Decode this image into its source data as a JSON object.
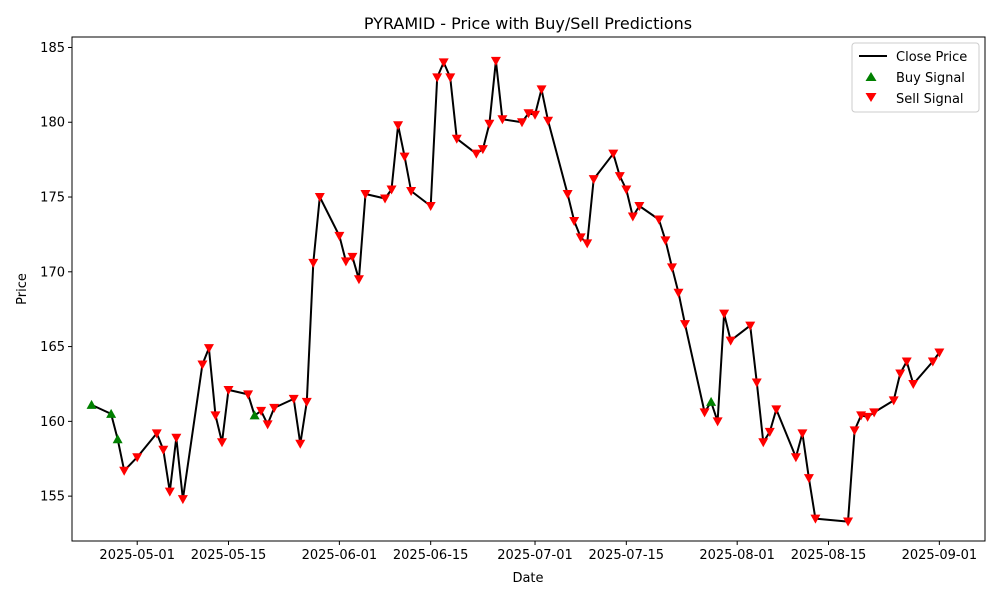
{
  "chart_data": {
    "type": "line",
    "title": "PYRAMID - Price with Buy/Sell Predictions",
    "xlabel": "Date",
    "ylabel": "Price",
    "xlim": [
      "2025-04-21",
      "2025-09-08"
    ],
    "ylim": [
      152.0,
      185.7
    ],
    "x_ticks": [
      "2025-05-01",
      "2025-05-15",
      "2025-06-01",
      "2025-06-15",
      "2025-07-01",
      "2025-07-15",
      "2025-08-01",
      "2025-08-15",
      "2025-09-01"
    ],
    "y_ticks": [
      155,
      160,
      165,
      170,
      175,
      180,
      185
    ],
    "legend": {
      "position": "top-right",
      "entries": [
        "Close Price",
        "Buy Signal",
        "Sell Signal"
      ]
    },
    "colors": {
      "line": "#000000",
      "buy": "#008000",
      "sell": "#ff0000"
    },
    "series": [
      {
        "name": "Close Price",
        "x": [
          "2025-04-24",
          "2025-04-27",
          "2025-04-28",
          "2025-04-29",
          "2025-05-01",
          "2025-05-04",
          "2025-05-05",
          "2025-05-06",
          "2025-05-07",
          "2025-05-08",
          "2025-05-11",
          "2025-05-12",
          "2025-05-13",
          "2025-05-14",
          "2025-05-15",
          "2025-05-18",
          "2025-05-19",
          "2025-05-20",
          "2025-05-21",
          "2025-05-22",
          "2025-05-25",
          "2025-05-26",
          "2025-05-27",
          "2025-05-28",
          "2025-05-29",
          "2025-06-01",
          "2025-06-02",
          "2025-06-03",
          "2025-06-04",
          "2025-06-05",
          "2025-06-08",
          "2025-06-09",
          "2025-06-10",
          "2025-06-11",
          "2025-06-12",
          "2025-06-15",
          "2025-06-16",
          "2025-06-17",
          "2025-06-18",
          "2025-06-19",
          "2025-06-22",
          "2025-06-23",
          "2025-06-24",
          "2025-06-25",
          "2025-06-26",
          "2025-06-29",
          "2025-06-30",
          "2025-07-01",
          "2025-07-02",
          "2025-07-03",
          "2025-07-06",
          "2025-07-07",
          "2025-07-08",
          "2025-07-09",
          "2025-07-10",
          "2025-07-13",
          "2025-07-14",
          "2025-07-15",
          "2025-07-16",
          "2025-07-17",
          "2025-07-20",
          "2025-07-21",
          "2025-07-22",
          "2025-07-23",
          "2025-07-24",
          "2025-07-27",
          "2025-07-28",
          "2025-07-29",
          "2025-07-30",
          "2025-07-31",
          "2025-08-03",
          "2025-08-04",
          "2025-08-05",
          "2025-08-06",
          "2025-08-07",
          "2025-08-10",
          "2025-08-11",
          "2025-08-12",
          "2025-08-13",
          "2025-08-18",
          "2025-08-19",
          "2025-08-20",
          "2025-08-21",
          "2025-08-22",
          "2025-08-25",
          "2025-08-26",
          "2025-08-27",
          "2025-08-28",
          "2025-08-31",
          "2025-09-01"
        ],
        "y": [
          161.1,
          160.5,
          158.8,
          156.7,
          157.6,
          159.2,
          158.1,
          155.3,
          158.9,
          154.8,
          163.8,
          164.9,
          160.4,
          158.6,
          162.1,
          161.8,
          160.4,
          160.7,
          159.8,
          160.9,
          161.5,
          158.5,
          161.3,
          170.6,
          175.0,
          172.4,
          170.7,
          171.0,
          169.5,
          175.2,
          174.9,
          175.5,
          179.8,
          177.7,
          175.4,
          174.4,
          183.0,
          184.0,
          183.0,
          178.9,
          177.9,
          178.2,
          179.9,
          184.1,
          180.2,
          180.0,
          180.6,
          180.5,
          182.2,
          180.1,
          175.2,
          173.4,
          172.3,
          171.9,
          176.2,
          177.9,
          176.4,
          175.5,
          173.7,
          174.4,
          173.5,
          172.1,
          170.3,
          168.6,
          166.5,
          160.6,
          161.3,
          160.0,
          167.2,
          165.4,
          166.4,
          162.6,
          158.6,
          159.3,
          160.8,
          157.6,
          159.2,
          156.2,
          153.5,
          153.3,
          159.4,
          160.4,
          160.3,
          160.6,
          161.4,
          163.2,
          164.0,
          162.5,
          164.0,
          164.6
        ]
      },
      {
        "name": "Buy Signal",
        "x": [
          "2025-04-24",
          "2025-04-27",
          "2025-04-28",
          "2025-05-19",
          "2025-07-28"
        ],
        "y": [
          161.1,
          160.5,
          158.8,
          160.4,
          161.3
        ]
      },
      {
        "name": "Sell Signal",
        "x": [
          "2025-04-29",
          "2025-05-01",
          "2025-05-04",
          "2025-05-05",
          "2025-05-06",
          "2025-05-07",
          "2025-05-08",
          "2025-05-11",
          "2025-05-12",
          "2025-05-13",
          "2025-05-14",
          "2025-05-15",
          "2025-05-18",
          "2025-05-20",
          "2025-05-21",
          "2025-05-22",
          "2025-05-25",
          "2025-05-26",
          "2025-05-27",
          "2025-05-28",
          "2025-05-29",
          "2025-06-01",
          "2025-06-02",
          "2025-06-03",
          "2025-06-04",
          "2025-06-05",
          "2025-06-08",
          "2025-06-09",
          "2025-06-10",
          "2025-06-11",
          "2025-06-12",
          "2025-06-15",
          "2025-06-16",
          "2025-06-17",
          "2025-06-18",
          "2025-06-19",
          "2025-06-22",
          "2025-06-23",
          "2025-06-24",
          "2025-06-25",
          "2025-06-26",
          "2025-06-29",
          "2025-06-30",
          "2025-07-01",
          "2025-07-02",
          "2025-07-03",
          "2025-07-06",
          "2025-07-07",
          "2025-07-08",
          "2025-07-09",
          "2025-07-10",
          "2025-07-13",
          "2025-07-14",
          "2025-07-15",
          "2025-07-16",
          "2025-07-17",
          "2025-07-20",
          "2025-07-21",
          "2025-07-22",
          "2025-07-23",
          "2025-07-24",
          "2025-07-27",
          "2025-07-29",
          "2025-07-30",
          "2025-07-31",
          "2025-08-03",
          "2025-08-04",
          "2025-08-05",
          "2025-08-06",
          "2025-08-07",
          "2025-08-10",
          "2025-08-11",
          "2025-08-12",
          "2025-08-13",
          "2025-08-18",
          "2025-08-19",
          "2025-08-20",
          "2025-08-21",
          "2025-08-22",
          "2025-08-25",
          "2025-08-26",
          "2025-08-27",
          "2025-08-28",
          "2025-08-31",
          "2025-09-01"
        ],
        "y": [
          156.7,
          157.6,
          159.2,
          158.1,
          155.3,
          158.9,
          154.8,
          163.8,
          164.9,
          160.4,
          158.6,
          162.1,
          161.8,
          160.7,
          159.8,
          160.9,
          161.5,
          158.5,
          161.3,
          170.6,
          175.0,
          172.4,
          170.7,
          171.0,
          169.5,
          175.2,
          174.9,
          175.5,
          179.8,
          177.7,
          175.4,
          174.4,
          183.0,
          184.0,
          183.0,
          178.9,
          177.9,
          178.2,
          179.9,
          184.1,
          180.2,
          180.0,
          180.6,
          180.5,
          182.2,
          180.1,
          175.2,
          173.4,
          172.3,
          171.9,
          176.2,
          177.9,
          176.4,
          175.5,
          173.7,
          174.4,
          173.5,
          172.1,
          170.3,
          168.6,
          166.5,
          160.6,
          160.0,
          167.2,
          165.4,
          166.4,
          162.6,
          158.6,
          159.3,
          160.8,
          157.6,
          159.2,
          156.2,
          153.5,
          153.3,
          159.4,
          160.4,
          160.3,
          160.6,
          161.4,
          163.2,
          164.0,
          162.5,
          164.0,
          164.6
        ]
      }
    ]
  }
}
